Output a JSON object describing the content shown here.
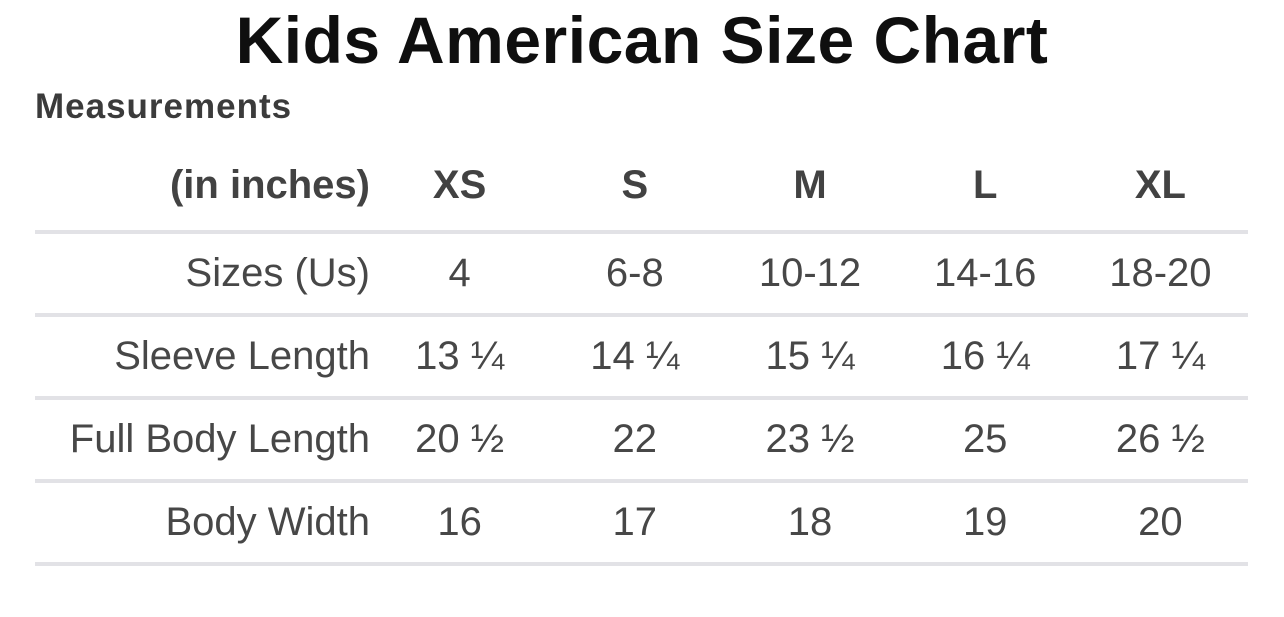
{
  "page": {
    "title": "Kids American Size Chart",
    "section_heading": "Measurements"
  },
  "table": {
    "unit_label": "(in inches)",
    "columns": [
      "XS",
      "S",
      "M",
      "L",
      "XL"
    ],
    "rows": [
      {
        "label": "Sizes (Us)",
        "values": [
          "4",
          "6-8",
          "10-12",
          "14-16",
          "18-20"
        ]
      },
      {
        "label": "Sleeve Length",
        "values": [
          "13 ¼",
          "14 ¼",
          "15 ¼",
          "16 ¼",
          "17 ¼"
        ]
      },
      {
        "label": "Full Body Length",
        "values": [
          "20 ½",
          "22",
          "23 ½",
          "25",
          "26 ½"
        ]
      },
      {
        "label": "Body Width",
        "values": [
          "16",
          "17",
          "18",
          "19",
          "20"
        ]
      }
    ]
  },
  "chart_data": {
    "type": "table",
    "title": "Kids American Size Chart",
    "subtitle": "Measurements",
    "unit": "inches",
    "columns": [
      "(in inches)",
      "XS",
      "S",
      "M",
      "L",
      "XL"
    ],
    "rows": [
      [
        "Sizes (Us)",
        "4",
        "6-8",
        "10-12",
        "14-16",
        "18-20"
      ],
      [
        "Sleeve Length",
        "13 ¼",
        "14 ¼",
        "15 ¼",
        "16 ¼",
        "17 ¼"
      ],
      [
        "Full Body Length",
        "20 ½",
        "22",
        "23 ½",
        "25",
        "26 ½"
      ],
      [
        "Body Width",
        "16",
        "17",
        "18",
        "19",
        "20"
      ]
    ],
    "layout": {
      "label_column_alignment": "right",
      "value_column_alignment": "center",
      "row_dividers": true,
      "header_bold": true
    }
  },
  "colors": {
    "title": "#0f0f0f",
    "heading": "#3b3b3b",
    "header_text": "#424242",
    "body_text": "#474747",
    "divider": "#e2e2e6",
    "background": "#ffffff"
  }
}
